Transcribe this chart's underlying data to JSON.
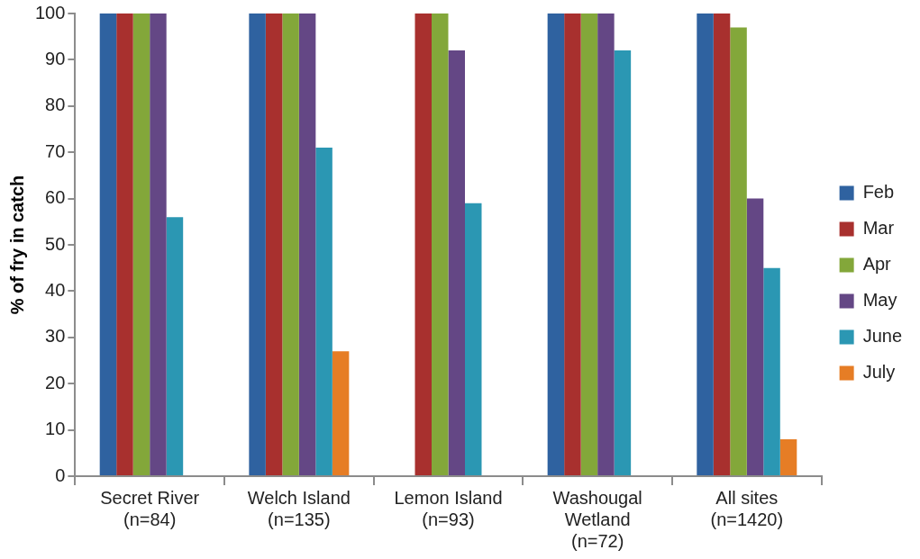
{
  "chart_data": {
    "type": "bar",
    "ylabel": "% of fry in catch",
    "categories": [
      "Secret River\n(n=84)",
      "Welch Island\n(n=135)",
      "Lemon Island\n(n=93)",
      "Washougal\nWetland\n(n=72)",
      "All sites\n(n=1420)"
    ],
    "series": [
      {
        "name": "Feb",
        "color": "#2f62a0",
        "values": [
          100,
          100,
          null,
          100,
          100
        ]
      },
      {
        "name": "Mar",
        "color": "#a8302e",
        "values": [
          100,
          100,
          100,
          100,
          100
        ]
      },
      {
        "name": "Apr",
        "color": "#83a73a",
        "values": [
          100,
          100,
          100,
          100,
          97
        ]
      },
      {
        "name": "May",
        "color": "#644785",
        "values": [
          100,
          100,
          92,
          100,
          60
        ]
      },
      {
        "name": "June",
        "color": "#2b97b3",
        "values": [
          56,
          71,
          59,
          92,
          45
        ]
      },
      {
        "name": "July",
        "color": "#e67d25",
        "values": [
          null,
          27,
          null,
          null,
          8
        ]
      }
    ],
    "ylim": [
      0,
      100
    ],
    "yticks": [
      0,
      10,
      20,
      30,
      40,
      50,
      60,
      70,
      80,
      90,
      100
    ],
    "legend": "right"
  }
}
